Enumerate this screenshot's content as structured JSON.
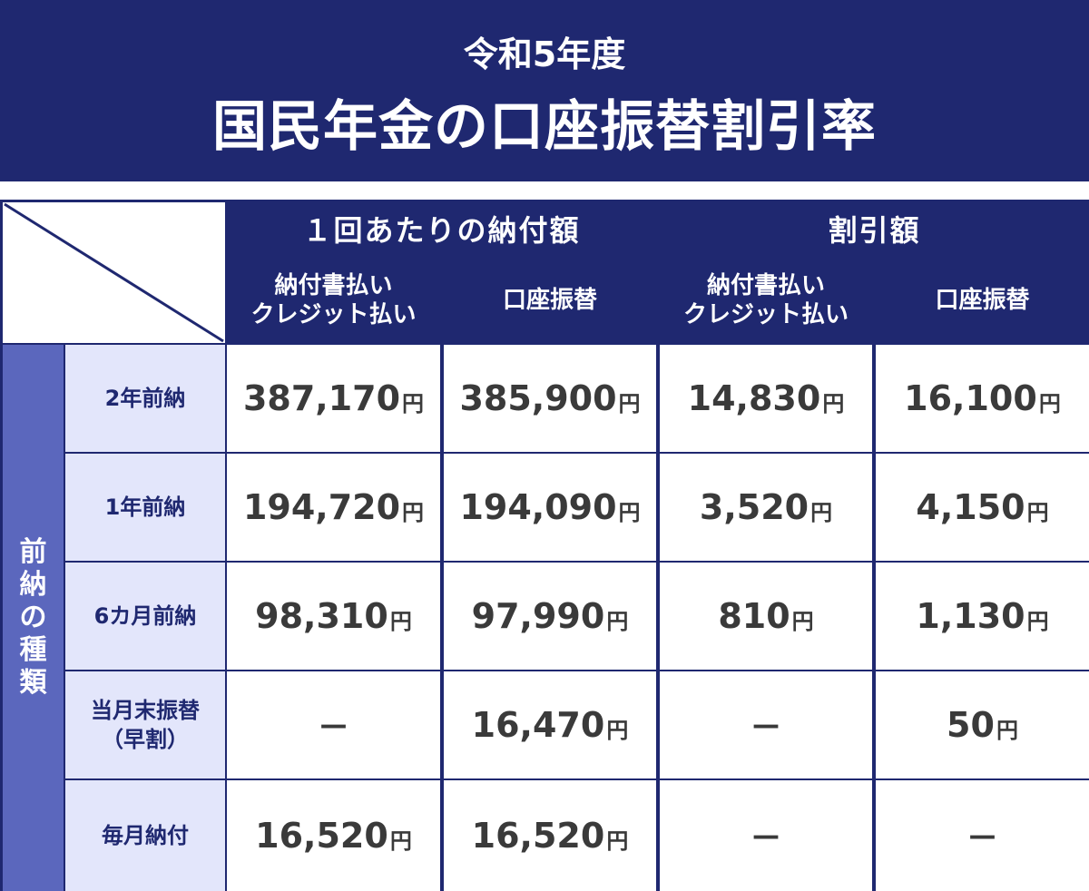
{
  "banner": {
    "subtitle": "令和5年度",
    "title": "国民年金の口座振替割引率"
  },
  "table": {
    "group_headers": [
      "１回あたりの納付額",
      "割引額"
    ],
    "sub_headers": [
      [
        "納付書払い",
        "クレジット払い"
      ],
      [
        "口座振替"
      ],
      [
        "納付書払い",
        "クレジット払い"
      ],
      [
        "口座振替"
      ]
    ],
    "side_label": [
      "前",
      "納",
      "の",
      "種",
      "類"
    ],
    "unit": "円",
    "dash": "—",
    "rows": [
      {
        "label": [
          "2年前納"
        ],
        "values": [
          "387,170",
          "385,900",
          "14,830",
          "16,100"
        ]
      },
      {
        "label": [
          "1年前納"
        ],
        "values": [
          "194,720",
          "194,090",
          "3,520",
          "4,150"
        ]
      },
      {
        "label": [
          "6カ月前納"
        ],
        "values": [
          "98,310",
          "97,990",
          "810",
          "1,130"
        ]
      },
      {
        "label": [
          "当月末振替",
          "（早割）"
        ],
        "values": [
          null,
          "16,470",
          null,
          "50"
        ]
      },
      {
        "label": [
          "毎月納付"
        ],
        "values": [
          "16,520",
          "16,520",
          null,
          null
        ]
      }
    ]
  }
}
